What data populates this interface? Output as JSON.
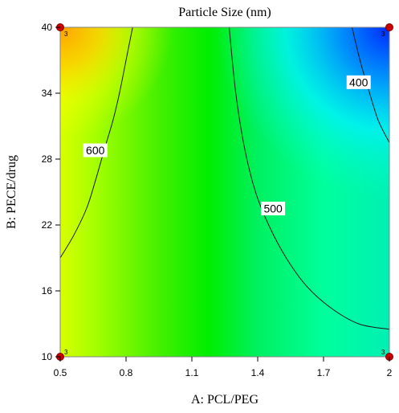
{
  "chart_data": {
    "type": "heatmap",
    "title": "Particle Size (nm)",
    "xlabel": "A: PCL/PEG",
    "ylabel": "B: PECE/drug",
    "xlim": [
      0.5,
      2
    ],
    "ylim": [
      10,
      40
    ],
    "x_ticks": [
      "0.5",
      "0.8",
      "1.1",
      "1.4",
      "1.7",
      "2"
    ],
    "y_ticks": [
      "10",
      "16",
      "22",
      "28",
      "34",
      "40"
    ],
    "grid": false,
    "legend": "none",
    "colormap": [
      "#0000ff",
      "#00ffff",
      "#00ff00",
      "#ffff00",
      "#ff8000"
    ],
    "contours": [
      {
        "label": "600",
        "points": [
          [
            0.5,
            19
          ],
          [
            0.56,
            21
          ],
          [
            0.62,
            23.5
          ],
          [
            0.66,
            26
          ],
          [
            0.7,
            28.8
          ],
          [
            0.74,
            31.5
          ],
          [
            0.77,
            34
          ],
          [
            0.8,
            37
          ],
          [
            0.83,
            40
          ]
        ],
        "label_at": [
          0.66,
          28.8
        ]
      },
      {
        "label": "500",
        "points": [
          [
            1.27,
            40
          ],
          [
            1.3,
            34
          ],
          [
            1.34,
            29
          ],
          [
            1.39,
            25
          ],
          [
            1.45,
            22
          ],
          [
            1.53,
            19
          ],
          [
            1.62,
            16.5
          ],
          [
            1.73,
            14.5
          ],
          [
            1.86,
            13
          ],
          [
            2.0,
            12.5
          ]
        ],
        "label_at": [
          1.47,
          23.5
        ]
      },
      {
        "label": "400",
        "points": [
          [
            1.83,
            40
          ],
          [
            1.86,
            37.5
          ],
          [
            1.88,
            36
          ],
          [
            1.91,
            34
          ],
          [
            1.95,
            31.5
          ],
          [
            2.0,
            29.5
          ]
        ],
        "label_at": [
          1.86,
          35
        ]
      }
    ],
    "design_points": [
      {
        "x": 0.5,
        "y": 10,
        "label": "3"
      },
      {
        "x": 0.5,
        "y": 40,
        "label": "3"
      },
      {
        "x": 2.0,
        "y": 10,
        "label": "3"
      },
      {
        "x": 2.0,
        "y": 40,
        "label": "3"
      }
    ]
  }
}
